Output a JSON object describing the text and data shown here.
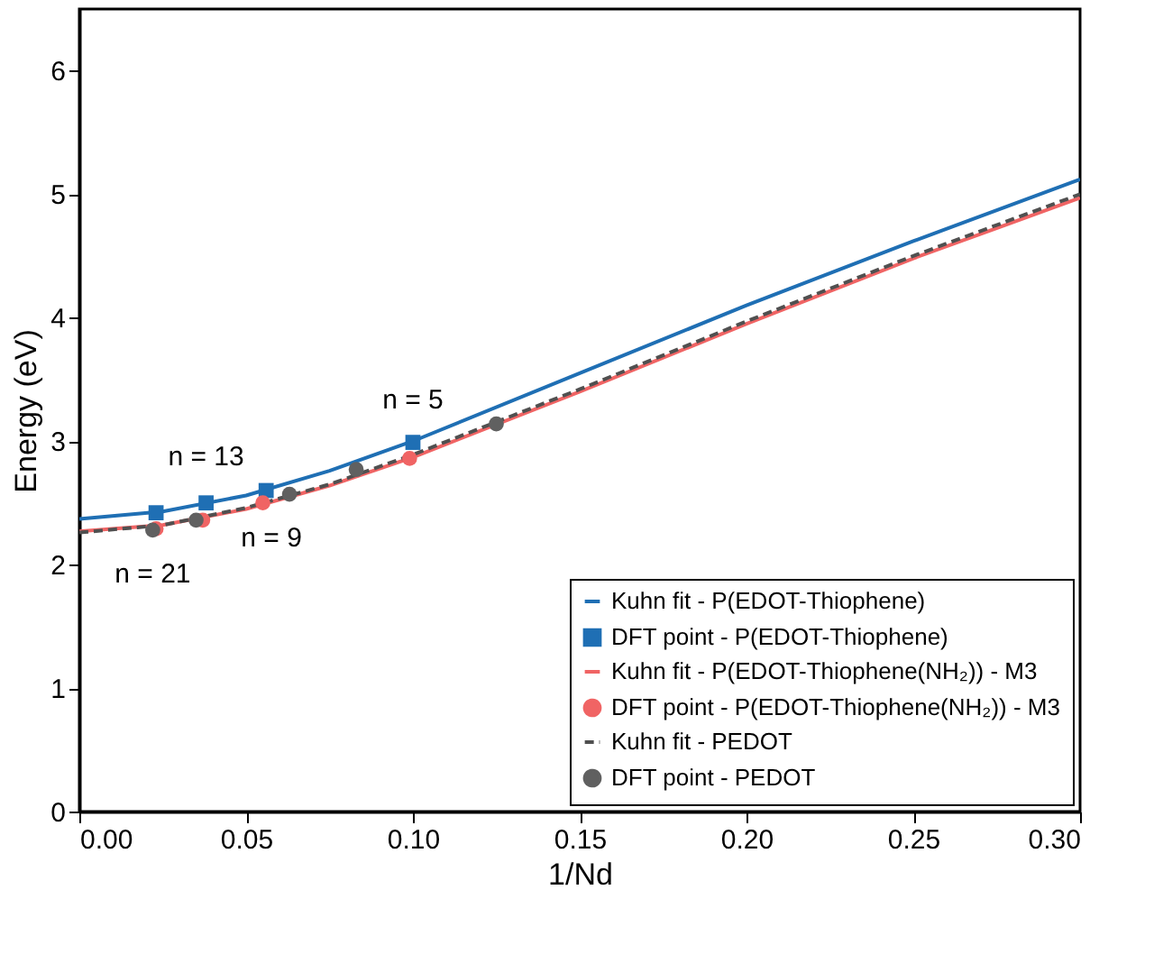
{
  "chart_data": {
    "type": "line",
    "xlabel": "1/Nd",
    "ylabel": "Energy (eV)",
    "xlim": [
      0,
      0.3
    ],
    "ylim": [
      0,
      6.5
    ],
    "xticks": [
      {
        "value": 0,
        "label": "0.00"
      },
      {
        "value": 0.05,
        "label": "0.05"
      },
      {
        "value": 0.1,
        "label": "0.10"
      },
      {
        "value": 0.15,
        "label": "0.15"
      },
      {
        "value": 0.2,
        "label": "0.20"
      },
      {
        "value": 0.25,
        "label": "0.25"
      },
      {
        "value": 0.3,
        "label": "0.30"
      }
    ],
    "yticks": [
      0,
      1,
      2,
      3,
      4,
      5,
      6
    ],
    "grid": false,
    "legend": "bottom right",
    "series": [
      {
        "name": "Kuhn fit - P(EDOT-Thiophene)",
        "line_style": "solid",
        "color": "#1f6fb4",
        "x": [
          0,
          0.025,
          0.05,
          0.075,
          0.1,
          0.15,
          0.2,
          0.25,
          0.3
        ],
        "values": [
          2.37,
          2.43,
          2.56,
          2.76,
          3.0,
          3.55,
          4.1,
          4.62,
          5.12
        ]
      },
      {
        "name": "DFT point - P(EDOT-Thiophene)",
        "type": "scatter",
        "marker": "square",
        "color": "#1f6fb4",
        "x": [
          0.023,
          0.038,
          0.056,
          0.1
        ],
        "values": [
          2.42,
          2.5,
          2.6,
          2.99
        ]
      },
      {
        "name": "Kuhn fit - P(EDOT-Thiophene(NH₂)) - M3",
        "line_style": "solid",
        "color": "#f06464",
        "x": [
          0,
          0.025,
          0.05,
          0.075,
          0.1,
          0.15,
          0.2,
          0.25,
          0.3
        ],
        "values": [
          2.27,
          2.32,
          2.45,
          2.64,
          2.87,
          3.4,
          3.95,
          4.48,
          4.97
        ]
      },
      {
        "name": "DFT point - P(EDOT-Thiophene(NH₂)) - M3",
        "type": "scatter",
        "marker": "circle",
        "color": "#f06464",
        "x": [
          0.023,
          0.037,
          0.055,
          0.099
        ],
        "values": [
          2.29,
          2.36,
          2.5,
          2.86
        ]
      },
      {
        "name": "Kuhn fit - PEDOT",
        "line_style": "dashed",
        "color": "#505050",
        "x": [
          0,
          0.025,
          0.05,
          0.075,
          0.1,
          0.15,
          0.2,
          0.25,
          0.3
        ],
        "values": [
          2.26,
          2.32,
          2.46,
          2.65,
          2.89,
          3.42,
          3.97,
          4.5,
          5.0
        ]
      },
      {
        "name": "DFT point - PEDOT",
        "type": "scatter",
        "marker": "circle",
        "color": "#606060",
        "x": [
          0.022,
          0.035,
          0.063,
          0.083,
          0.125
        ],
        "values": [
          2.28,
          2.36,
          2.57,
          2.77,
          3.14
        ]
      }
    ],
    "annotations": [
      {
        "text": "n = 13",
        "x": 0.038,
        "y": 2.5
      },
      {
        "text": "n = 5",
        "x": 0.1,
        "y": 2.99
      },
      {
        "text": "n = 21",
        "x": 0.022,
        "y": 2.28
      },
      {
        "text": "n = 9",
        "x": 0.063,
        "y": 2.57
      }
    ]
  }
}
